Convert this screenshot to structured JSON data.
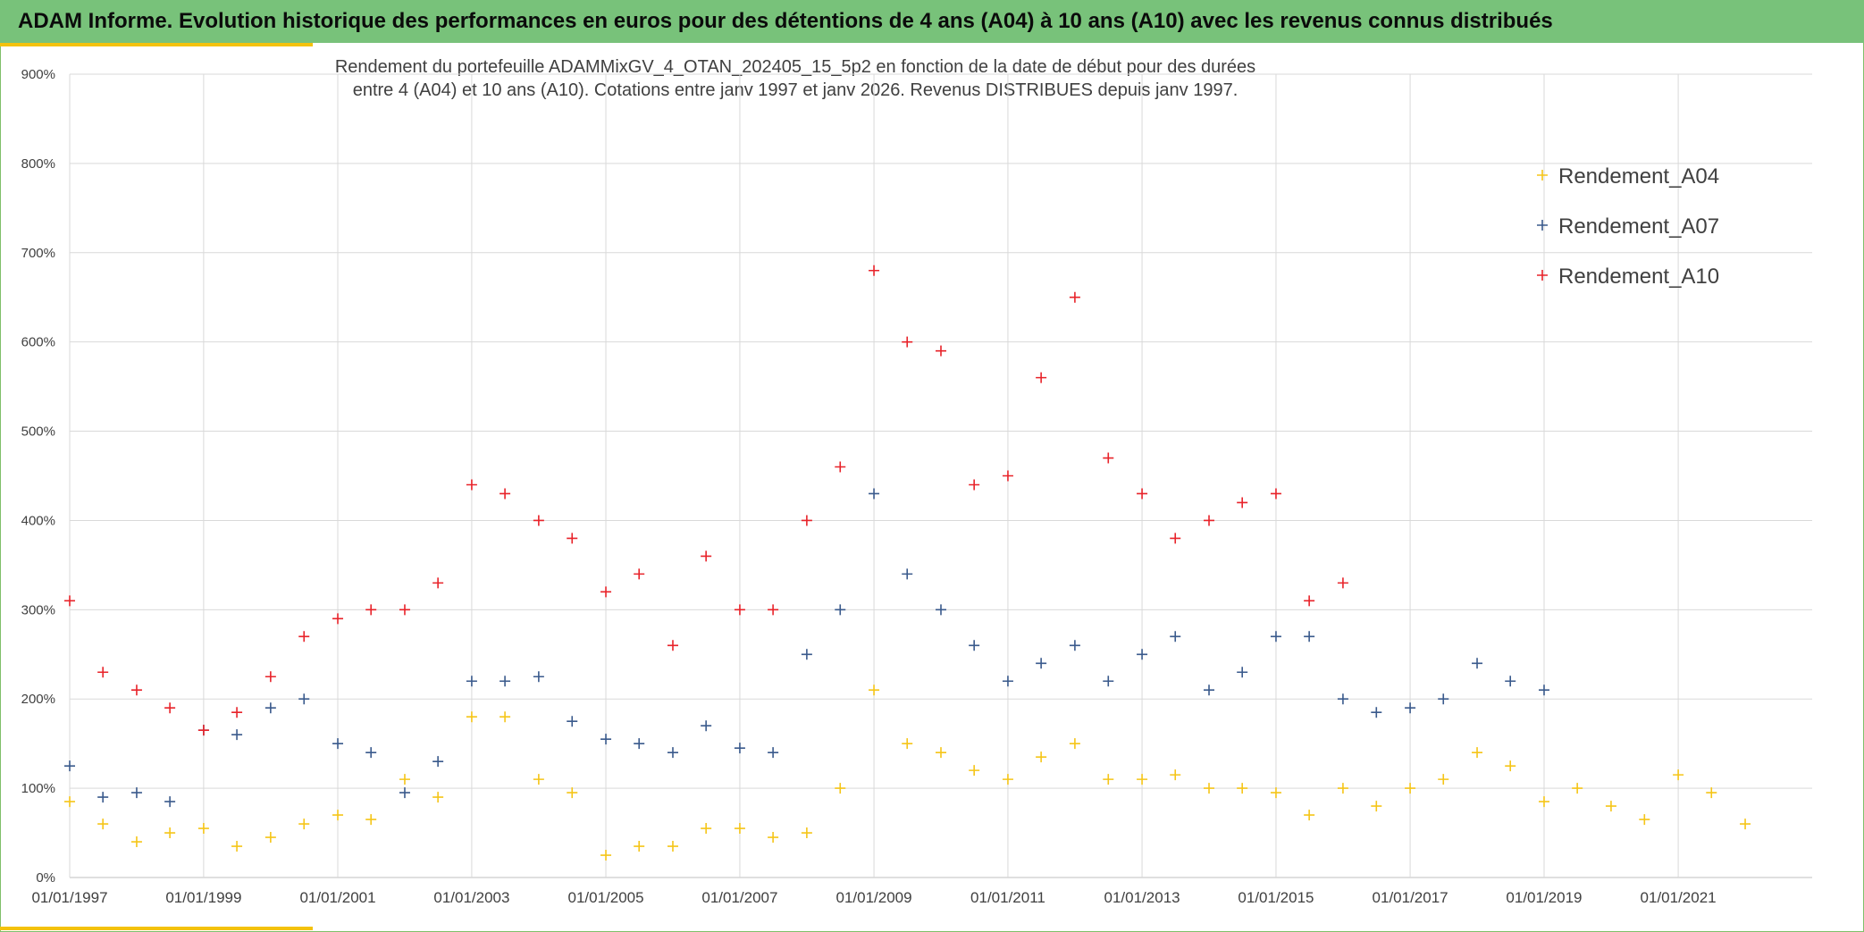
{
  "banner": {
    "title": "ADAM Informe. Evolution historique des performances en euros pour des détentions de 4 ans (A04) à 10 ans (A10) avec les revenus connus distribués"
  },
  "colors": {
    "banner_bg": "#78c27a",
    "accent": "#f4c20d",
    "A04": "#f5c518",
    "A07": "#3a5a8c",
    "A10": "#e8232a",
    "grid": "#d9d9d9"
  },
  "chart_data": {
    "type": "scatter",
    "title_line1": "Rendement du portefeuille ADAMMixGV_4_OTAN_202405_15_5p2  en fonction de la date de début pour des durées",
    "title_line2": "entre 4 (A04) et 10 ans (A10). Cotations entre janv 1997 et janv 2026. Revenus DISTRIBUES depuis janv 1997.",
    "marker": "+",
    "xlabel": "",
    "ylabel": "",
    "x_range": [
      "1997-01-01",
      "2023-01-01"
    ],
    "ylim": [
      0,
      900
    ],
    "y_ticks": [
      0,
      100,
      200,
      300,
      400,
      500,
      600,
      700,
      800,
      900
    ],
    "y_tick_labels": [
      "0%",
      "100%",
      "200%",
      "300%",
      "400%",
      "500%",
      "600%",
      "700%",
      "800%",
      "900%"
    ],
    "x_tick_labels": [
      "01/01/1997",
      "01/01/1999",
      "01/01/2001",
      "01/01/2003",
      "01/01/2005",
      "01/01/2007",
      "01/01/2009",
      "01/01/2011",
      "01/01/2013",
      "01/01/2015",
      "01/01/2017",
      "01/01/2019",
      "01/01/2021"
    ],
    "x_ticks": [
      "1997-01-01",
      "1999-01-01",
      "2001-01-01",
      "2003-01-01",
      "2005-01-01",
      "2007-01-01",
      "2009-01-01",
      "2011-01-01",
      "2013-01-01",
      "2015-01-01",
      "2017-01-01",
      "2019-01-01",
      "2021-01-01"
    ],
    "grid": true,
    "legend_position": "top-right",
    "series": [
      {
        "name": "Rendement_A04",
        "color": "#f5c518",
        "x": [
          "1997-01",
          "1997-07",
          "1998-01",
          "1998-07",
          "1999-01",
          "1999-07",
          "2000-01",
          "2000-07",
          "2001-01",
          "2001-07",
          "2002-01",
          "2002-07",
          "2003-01",
          "2003-07",
          "2004-01",
          "2004-07",
          "2005-01",
          "2005-07",
          "2006-01",
          "2006-07",
          "2007-01",
          "2007-07",
          "2008-01",
          "2008-07",
          "2009-01",
          "2009-07",
          "2010-01",
          "2010-07",
          "2011-01",
          "2011-07",
          "2012-01",
          "2012-07",
          "2013-01",
          "2013-07",
          "2014-01",
          "2014-07",
          "2015-01",
          "2015-07",
          "2016-01",
          "2016-07",
          "2017-01",
          "2017-07",
          "2018-01",
          "2018-07",
          "2019-01",
          "2019-07",
          "2020-01",
          "2020-07",
          "2021-01",
          "2021-07",
          "2022-01"
        ],
        "y": [
          85,
          60,
          40,
          50,
          55,
          35,
          45,
          60,
          70,
          65,
          110,
          90,
          180,
          180,
          110,
          95,
          25,
          35,
          35,
          55,
          55,
          45,
          50,
          100,
          210,
          150,
          140,
          120,
          110,
          135,
          150,
          110,
          110,
          115,
          100,
          100,
          95,
          70,
          100,
          80,
          100,
          110,
          140,
          125,
          85,
          100,
          80,
          65,
          115,
          95,
          60
        ]
      },
      {
        "name": "Rendement_A07",
        "color": "#3a5a8c",
        "x": [
          "1997-01",
          "1997-07",
          "1998-01",
          "1998-07",
          "1999-01",
          "1999-07",
          "2000-01",
          "2000-07",
          "2001-01",
          "2001-07",
          "2002-01",
          "2002-07",
          "2003-01",
          "2003-07",
          "2004-01",
          "2004-07",
          "2005-01",
          "2005-07",
          "2006-01",
          "2006-07",
          "2007-01",
          "2007-07",
          "2008-01",
          "2008-07",
          "2009-01",
          "2009-07",
          "2010-01",
          "2010-07",
          "2011-01",
          "2011-07",
          "2012-01",
          "2012-07",
          "2013-01",
          "2013-07",
          "2014-01",
          "2014-07",
          "2015-01",
          "2015-07",
          "2016-01",
          "2016-07",
          "2017-01",
          "2017-07",
          "2018-01",
          "2018-07",
          "2019-01"
        ],
        "y": [
          125,
          90,
          95,
          85,
          165,
          160,
          190,
          200,
          150,
          140,
          95,
          130,
          220,
          220,
          225,
          175,
          155,
          150,
          140,
          170,
          145,
          140,
          250,
          300,
          430,
          340,
          300,
          260,
          220,
          240,
          260,
          220,
          250,
          270,
          210,
          230,
          270,
          270,
          200,
          185,
          190,
          200,
          240,
          220,
          210
        ]
      },
      {
        "name": "Rendement_A10",
        "color": "#e8232a",
        "x": [
          "1997-01",
          "1997-07",
          "1998-01",
          "1998-07",
          "1999-01",
          "1999-07",
          "2000-01",
          "2000-07",
          "2001-01",
          "2001-07",
          "2002-01",
          "2002-07",
          "2003-01",
          "2003-07",
          "2004-01",
          "2004-07",
          "2005-01",
          "2005-07",
          "2006-01",
          "2006-07",
          "2007-01",
          "2007-07",
          "2008-01",
          "2008-07",
          "2009-01",
          "2009-07",
          "2010-01",
          "2010-07",
          "2011-01",
          "2011-07",
          "2012-01",
          "2012-07",
          "2013-01",
          "2013-07",
          "2014-01",
          "2014-07",
          "2015-01",
          "2015-07",
          "2016-01"
        ],
        "y": [
          310,
          230,
          210,
          190,
          165,
          185,
          225,
          270,
          290,
          300,
          300,
          330,
          440,
          430,
          400,
          380,
          320,
          340,
          260,
          360,
          300,
          300,
          400,
          460,
          680,
          600,
          590,
          440,
          450,
          560,
          650,
          470,
          430,
          380,
          400,
          420,
          430,
          310,
          330
        ]
      }
    ]
  }
}
